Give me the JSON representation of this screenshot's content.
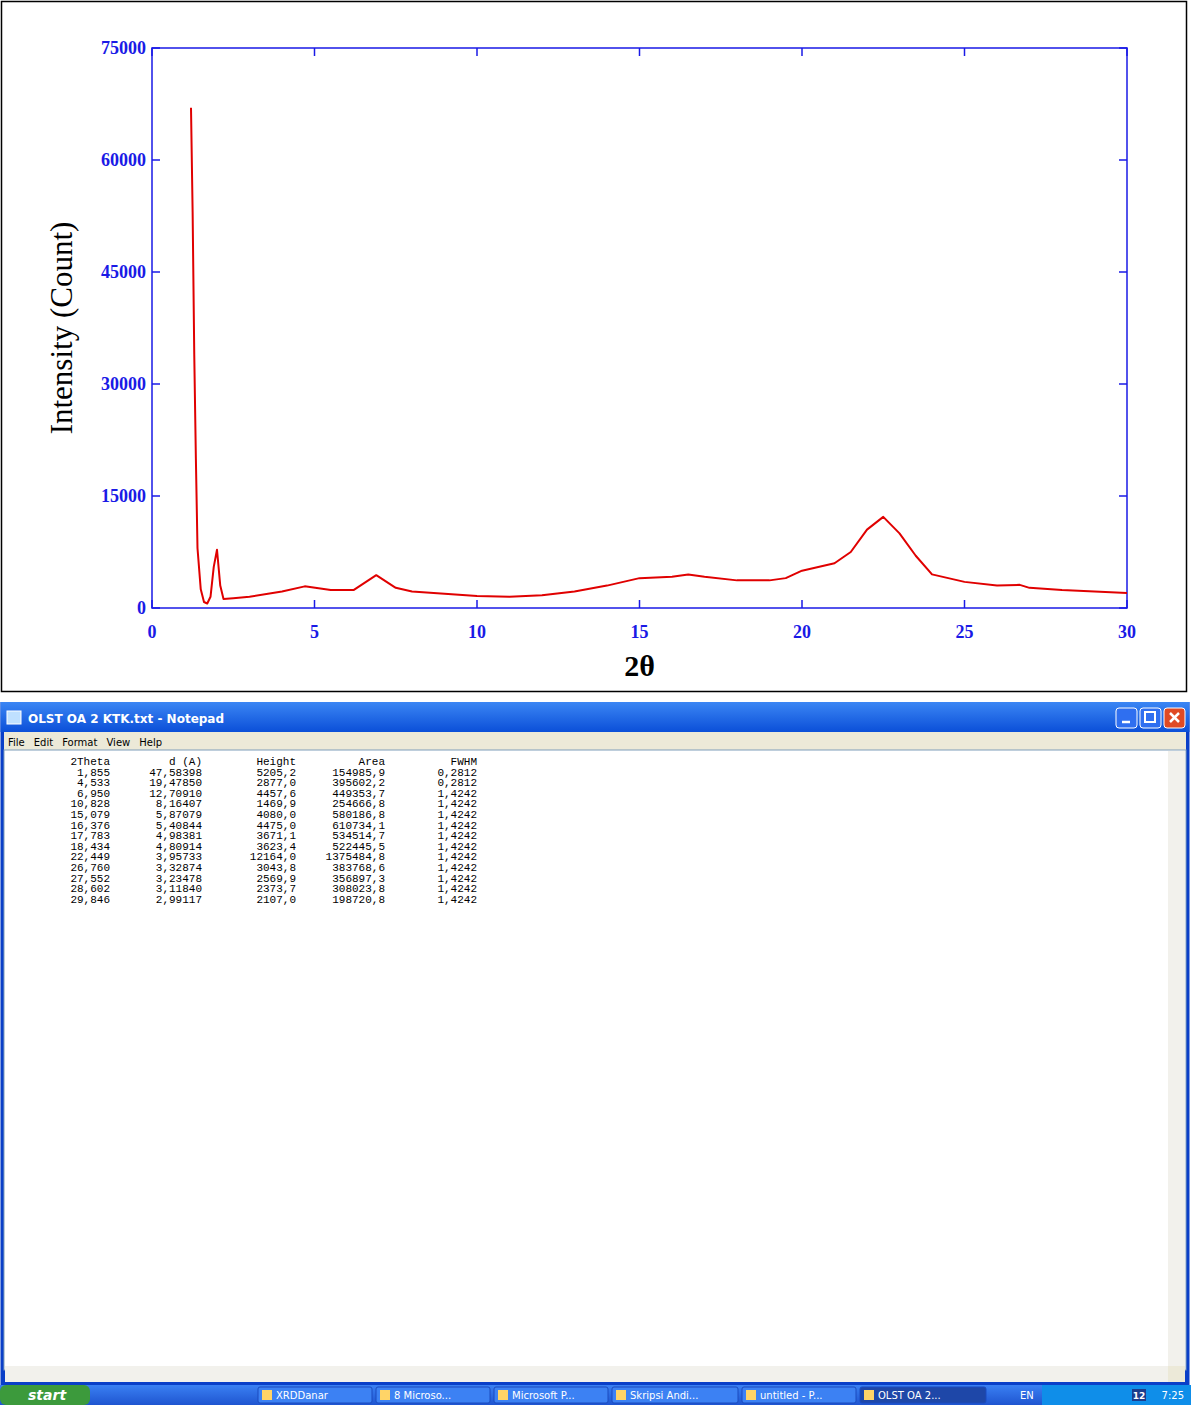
{
  "chart_data": {
    "type": "line",
    "xlabel": "2θ",
    "ylabel": "Intensity (Count)",
    "x": [
      1.2,
      1.25,
      1.3,
      1.35,
      1.4,
      1.5,
      1.6,
      1.7,
      1.8,
      1.9,
      2.0,
      2.1,
      2.2,
      2.5,
      3,
      4,
      4.7,
      5.5,
      6.2,
      6.9,
      7.5,
      8,
      9,
      10,
      11,
      12,
      13,
      14,
      15,
      16,
      16.5,
      17,
      18,
      19,
      19.5,
      20,
      21,
      21.5,
      22,
      22.5,
      23,
      23.5,
      24,
      25,
      26,
      26.7,
      27,
      28,
      29,
      30
    ],
    "series": [
      {
        "color": "#e00000",
        "values": [
          67000,
          53000,
          34000,
          20000,
          8000,
          2500,
          800,
          600,
          1500,
          5500,
          7800,
          3000,
          1200,
          1300,
          1500,
          2200,
          2900,
          2400,
          2400,
          4400,
          2700,
          2200,
          1900,
          1600,
          1500,
          1700,
          2200,
          3000,
          4000,
          4200,
          4500,
          4200,
          3700,
          3700,
          4000,
          5000,
          6000,
          7500,
          10500,
          12200,
          10000,
          7000,
          4500,
          3500,
          3000,
          3100,
          2700,
          2400,
          2200,
          2000
        ]
      }
    ],
    "xlim": [
      0,
      30
    ],
    "ylim": [
      0,
      75000
    ],
    "xticks": [
      0,
      5,
      10,
      15,
      20,
      25,
      30
    ],
    "yticks": [
      0,
      15000,
      30000,
      45000,
      60000,
      75000
    ]
  },
  "notepad": {
    "title": "OLST OA 2 KTK.txt - Notepad",
    "menu": [
      "File",
      "Edit",
      "Format",
      "View",
      "Help"
    ],
    "table": {
      "header": [
        "2Theta",
        "d (A)",
        "Height",
        "Area",
        "FWHM"
      ],
      "rows": [
        [
          "1,855",
          "47,58398",
          "5205,2",
          "154985,9",
          "0,2812"
        ],
        [
          "4,533",
          "19,47850",
          "2877,0",
          "395602,2",
          "0,2812"
        ],
        [
          "6,950",
          "12,70910",
          "4457,6",
          "449353,7",
          "1,4242"
        ],
        [
          "10,828",
          "8,16407",
          "1469,9",
          "254666,8",
          "1,4242"
        ],
        [
          "15,079",
          "5,87079",
          "4080,0",
          "580186,8",
          "1,4242"
        ],
        [
          "16,376",
          "5,40844",
          "4475,0",
          "610734,1",
          "1,4242"
        ],
        [
          "17,783",
          "4,98381",
          "3671,1",
          "534514,7",
          "1,4242"
        ],
        [
          "18,434",
          "4,80914",
          "3623,4",
          "522445,5",
          "1,4242"
        ],
        [
          "22,449",
          "3,95733",
          "12164,0",
          "1375484,8",
          "1,4242"
        ],
        [
          "26,760",
          "3,32874",
          "3043,8",
          "383768,6",
          "1,4242"
        ],
        [
          "27,552",
          "3,23478",
          "2569,9",
          "356897,3",
          "1,4242"
        ],
        [
          "28,602",
          "3,11840",
          "2373,7",
          "308023,8",
          "1,4242"
        ],
        [
          "29,846",
          "2,99117",
          "2107,0",
          "198720,8",
          "1,4242"
        ]
      ]
    }
  },
  "taskbar": {
    "start": "start",
    "items": [
      "XRDDanar",
      "8 Microso...",
      "Microsoft P...",
      "Skripsi Andi...",
      "untitled - P...",
      "OLST OA 2..."
    ],
    "language": "EN",
    "tray_number": "12",
    "clock": "7:25"
  }
}
